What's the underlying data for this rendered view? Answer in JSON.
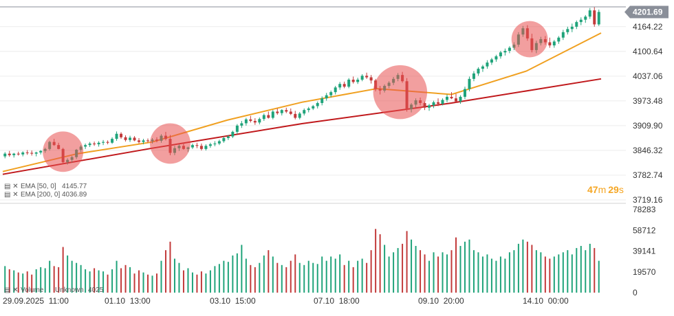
{
  "chart_data": {
    "type": "candlestick",
    "price_axis": {
      "ticks": [
        "4164.22",
        "4100.64",
        "4037.06",
        "3973.48",
        "3909.90",
        "3846.32",
        "3782.74",
        "3719.16"
      ],
      "range": [
        3719.16,
        4215
      ]
    },
    "last_price": "4201.69",
    "volume_axis": {
      "ticks": [
        "78283",
        "58712",
        "39141",
        "19570",
        "0"
      ],
      "range": [
        0,
        78283
      ]
    },
    "time_labels": [
      "29.09.2025  11:00",
      "01.10  13:00",
      "03.10  15:00",
      "07.10  18:00",
      "09.10  20:00",
      "14.10  00:00"
    ],
    "candles": [
      [
        3831,
        3842,
        3826,
        3838,
        25000
      ],
      [
        3838,
        3845,
        3830,
        3834,
        22000
      ],
      [
        3834,
        3840,
        3828,
        3838,
        21000
      ],
      [
        3838,
        3843,
        3833,
        3836,
        19000
      ],
      [
        3836,
        3844,
        3831,
        3841,
        18000
      ],
      [
        3841,
        3847,
        3835,
        3840,
        20000
      ],
      [
        3840,
        3846,
        3833,
        3838,
        17000
      ],
      [
        3838,
        3843,
        3831,
        3841,
        22000
      ],
      [
        3841,
        3847,
        3836,
        3845,
        24000
      ],
      [
        3845,
        3853,
        3840,
        3850,
        23000
      ],
      [
        3850,
        3871,
        3846,
        3868,
        30000
      ],
      [
        3868,
        3876,
        3858,
        3860,
        25000
      ],
      [
        3860,
        3866,
        3849,
        3850,
        24000
      ],
      [
        3850,
        3853,
        3812,
        3816,
        43000
      ],
      [
        3816,
        3826,
        3810,
        3822,
        35000
      ],
      [
        3822,
        3832,
        3815,
        3829,
        30000
      ],
      [
        3829,
        3850,
        3824,
        3848,
        28000
      ],
      [
        3848,
        3860,
        3842,
        3856,
        26000
      ],
      [
        3856,
        3864,
        3850,
        3860,
        22000
      ],
      [
        3860,
        3868,
        3855,
        3864,
        20000
      ],
      [
        3864,
        3869,
        3858,
        3862,
        23000
      ],
      [
        3862,
        3870,
        3856,
        3866,
        21000
      ],
      [
        3866,
        3873,
        3860,
        3868,
        20000
      ],
      [
        3868,
        3872,
        3862,
        3866,
        17000
      ],
      [
        3866,
        3880,
        3863,
        3876,
        22000
      ],
      [
        3876,
        3895,
        3871,
        3889,
        30000
      ],
      [
        3889,
        3893,
        3876,
        3880,
        23000
      ],
      [
        3880,
        3885,
        3869,
        3873,
        26000
      ],
      [
        3873,
        3884,
        3868,
        3879,
        24000
      ],
      [
        3879,
        3883,
        3870,
        3872,
        18000
      ],
      [
        3872,
        3878,
        3864,
        3868,
        21000
      ],
      [
        3868,
        3876,
        3862,
        3872,
        19000
      ],
      [
        3872,
        3877,
        3866,
        3870,
        17000
      ],
      [
        3870,
        3878,
        3864,
        3874,
        16000
      ],
      [
        3874,
        3880,
        3867,
        3871,
        18000
      ],
      [
        3871,
        3888,
        3866,
        3884,
        30000
      ],
      [
        3884,
        3894,
        3872,
        3876,
        40000
      ],
      [
        3876,
        3886,
        3834,
        3840,
        48000
      ],
      [
        3840,
        3858,
        3834,
        3852,
        32000
      ],
      [
        3852,
        3862,
        3845,
        3858,
        28000
      ],
      [
        3858,
        3866,
        3848,
        3850,
        21000
      ],
      [
        3850,
        3856,
        3842,
        3854,
        23000
      ],
      [
        3854,
        3864,
        3850,
        3860,
        19000
      ],
      [
        3860,
        3866,
        3852,
        3858,
        17000
      ],
      [
        3858,
        3864,
        3846,
        3850,
        20000
      ],
      [
        3850,
        3862,
        3846,
        3858,
        18000
      ],
      [
        3858,
        3866,
        3853,
        3862,
        21000
      ],
      [
        3862,
        3870,
        3857,
        3864,
        25000
      ],
      [
        3864,
        3874,
        3860,
        3870,
        27000
      ],
      [
        3870,
        3882,
        3866,
        3878,
        30000
      ],
      [
        3878,
        3886,
        3873,
        3882,
        29000
      ],
      [
        3882,
        3897,
        3878,
        3894,
        35000
      ],
      [
        3894,
        3914,
        3888,
        3910,
        37000
      ],
      [
        3910,
        3922,
        3904,
        3916,
        45000
      ],
      [
        3916,
        3930,
        3910,
        3926,
        32000
      ],
      [
        3926,
        3935,
        3918,
        3922,
        26000
      ],
      [
        3922,
        3929,
        3912,
        3918,
        24000
      ],
      [
        3918,
        3931,
        3913,
        3927,
        28000
      ],
      [
        3927,
        3941,
        3922,
        3937,
        35000
      ],
      [
        3937,
        3946,
        3928,
        3930,
        40000
      ],
      [
        3930,
        3950,
        3926,
        3946,
        34000
      ],
      [
        3946,
        3954,
        3938,
        3942,
        28000
      ],
      [
        3942,
        3952,
        3936,
        3950,
        26000
      ],
      [
        3950,
        3956,
        3942,
        3946,
        24000
      ],
      [
        3946,
        3954,
        3937,
        3940,
        30000
      ],
      [
        3940,
        3948,
        3926,
        3930,
        36000
      ],
      [
        3930,
        3945,
        3926,
        3941,
        28000
      ],
      [
        3941,
        3954,
        3936,
        3950,
        26000
      ],
      [
        3950,
        3958,
        3944,
        3954,
        30000
      ],
      [
        3954,
        3963,
        3950,
        3960,
        28000
      ],
      [
        3960,
        3972,
        3954,
        3968,
        27000
      ],
      [
        3968,
        3985,
        3962,
        3980,
        34000
      ],
      [
        3980,
        3994,
        3974,
        3988,
        30000
      ],
      [
        3988,
        4000,
        3982,
        3996,
        34000
      ],
      [
        3996,
        4012,
        3990,
        4008,
        32000
      ],
      [
        4008,
        4022,
        4002,
        4017,
        36000
      ],
      [
        4017,
        4023,
        4006,
        4010,
        26000
      ],
      [
        4010,
        4032,
        4006,
        4028,
        30000
      ],
      [
        4028,
        4036,
        4018,
        4022,
        24000
      ],
      [
        4022,
        4033,
        4017,
        4028,
        30000
      ],
      [
        4028,
        4042,
        4024,
        4038,
        32000
      ],
      [
        4038,
        4046,
        4030,
        4034,
        28000
      ],
      [
        4034,
        4040,
        4018,
        4026,
        40000
      ],
      [
        4026,
        4030,
        3998,
        4004,
        60000
      ],
      [
        4004,
        4012,
        3990,
        4000,
        55000
      ],
      [
        4000,
        4016,
        3995,
        4012,
        45000
      ],
      [
        4012,
        4024,
        4006,
        4020,
        34000
      ],
      [
        4020,
        4035,
        4014,
        4030,
        38000
      ],
      [
        4030,
        4045,
        4024,
        4040,
        42000
      ],
      [
        4040,
        4048,
        4020,
        4024,
        46000
      ],
      [
        4024,
        4032,
        3946,
        3952,
        58000
      ],
      [
        3952,
        3968,
        3944,
        3964,
        50000
      ],
      [
        3964,
        3980,
        3956,
        3975,
        44000
      ],
      [
        3975,
        3982,
        3962,
        3968,
        40000
      ],
      [
        3968,
        3972,
        3950,
        3956,
        36000
      ],
      [
        3956,
        3966,
        3948,
        3962,
        30000
      ],
      [
        3962,
        3974,
        3955,
        3970,
        38000
      ],
      [
        3970,
        3980,
        3960,
        3966,
        34000
      ],
      [
        3966,
        3980,
        3962,
        3976,
        38000
      ],
      [
        3976,
        3990,
        3970,
        3984,
        36000
      ],
      [
        3984,
        3996,
        3978,
        3980,
        40000
      ],
      [
        3980,
        3992,
        3968,
        3972,
        52000
      ],
      [
        3972,
        3988,
        3966,
        3984,
        44000
      ],
      [
        3984,
        4010,
        3978,
        4004,
        48000
      ],
      [
        4004,
        4036,
        3998,
        4030,
        50000
      ],
      [
        4030,
        4050,
        4024,
        4044,
        40000
      ],
      [
        4044,
        4060,
        4038,
        4056,
        38000
      ],
      [
        4056,
        4066,
        4048,
        4062,
        34000
      ],
      [
        4062,
        4078,
        4056,
        4072,
        36000
      ],
      [
        4072,
        4084,
        4066,
        4080,
        32000
      ],
      [
        4080,
        4092,
        4074,
        4088,
        30000
      ],
      [
        4088,
        4102,
        4082,
        4098,
        34000
      ],
      [
        4098,
        4108,
        4090,
        4102,
        32000
      ],
      [
        4102,
        4114,
        4096,
        4110,
        38000
      ],
      [
        4110,
        4124,
        4104,
        4118,
        40000
      ],
      [
        4118,
        4150,
        4112,
        4144,
        46000
      ],
      [
        4144,
        4166,
        4138,
        4160,
        50000
      ],
      [
        4160,
        4168,
        4128,
        4134,
        48000
      ],
      [
        4134,
        4146,
        4098,
        4104,
        45000
      ],
      [
        4104,
        4128,
        4096,
        4122,
        40000
      ],
      [
        4122,
        4138,
        4116,
        4132,
        38000
      ],
      [
        4132,
        4140,
        4118,
        4124,
        34000
      ],
      [
        4124,
        4136,
        4110,
        4116,
        32000
      ],
      [
        4116,
        4130,
        4110,
        4126,
        34000
      ],
      [
        4126,
        4140,
        4120,
        4136,
        36000
      ],
      [
        4136,
        4156,
        4130,
        4150,
        38000
      ],
      [
        4150,
        4164,
        4144,
        4158,
        40000
      ],
      [
        4158,
        4172,
        4150,
        4164,
        36000
      ],
      [
        4164,
        4180,
        4158,
        4176,
        42000
      ],
      [
        4176,
        4188,
        4168,
        4182,
        44000
      ],
      [
        4182,
        4194,
        4174,
        4190,
        40000
      ],
      [
        4190,
        4212,
        4184,
        4206,
        46000
      ],
      [
        4206,
        4214,
        4164,
        4170,
        42000
      ],
      [
        4170,
        4208,
        4166,
        4202,
        30000
      ]
    ],
    "series": [
      {
        "name": "EMA [200, 0]",
        "value": "4036.89",
        "color": "#c0181b",
        "values": [
          3785,
          3852,
          3915,
          3968,
          4030
        ]
      },
      {
        "name": "EMA [50, 0]",
        "value": "4145.77",
        "color": "#f0a020",
        "values": [
          3792,
          3838,
          3868,
          3924,
          3970,
          4005,
          3990,
          4050,
          4148
        ]
      }
    ],
    "volume_label": "Volume",
    "volume_unknown": "Unknown",
    "volume_value": "4025",
    "highlight_circles": [
      {
        "from": 10,
        "to": 16
      },
      {
        "from": 34,
        "to": 40
      },
      {
        "from": 84,
        "to": 93
      },
      {
        "from": 115,
        "to": 120
      }
    ],
    "countdown": {
      "minutes": "47",
      "minutes_unit": "m",
      "seconds": "29",
      "seconds_unit": "s"
    }
  },
  "colors": {
    "up": "#1fa37a",
    "down": "#c23a3a",
    "price_tag": "#8a8f99",
    "grid": "#ececec"
  }
}
